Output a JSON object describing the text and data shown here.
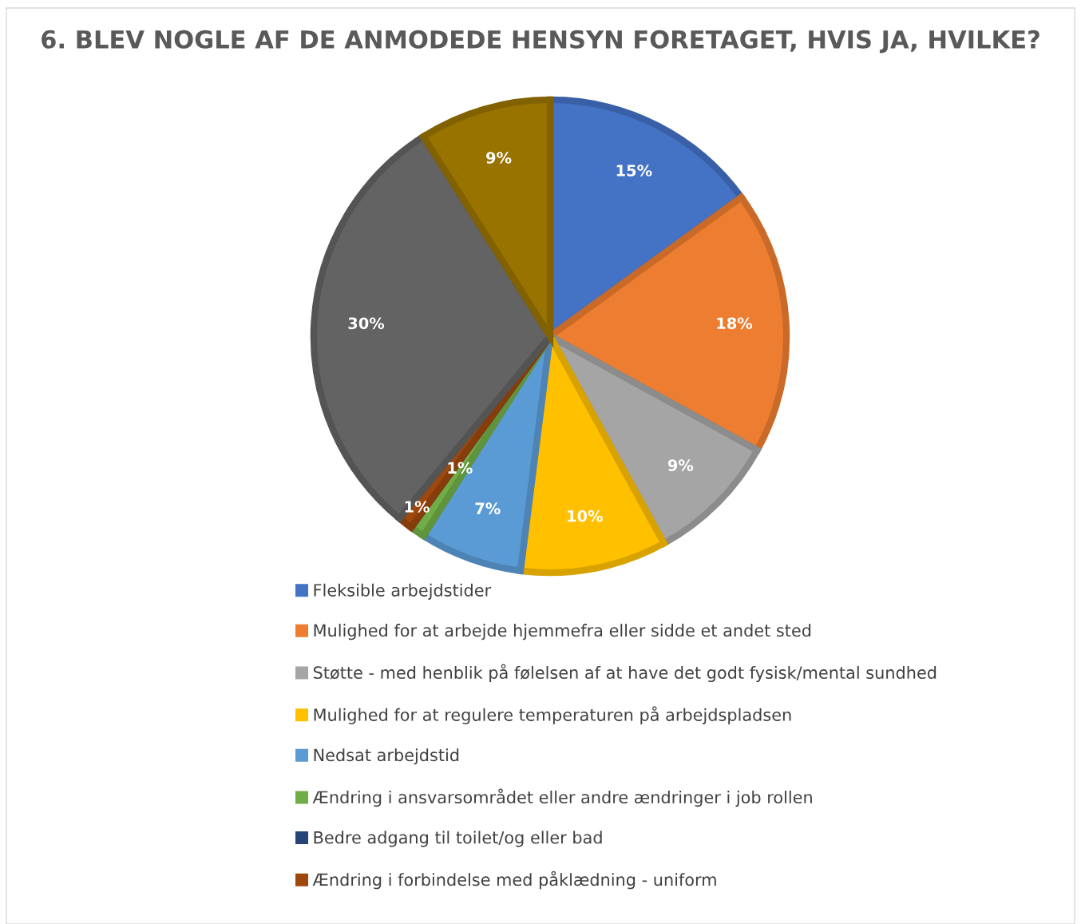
{
  "chart_data": {
    "type": "pie",
    "title": "6. BLEV NOGLE AF DE ANMODEDE HENSYN FORETAGET, HVIS JA, HVILKE?",
    "categories": [
      "Fleksible arbejdstider",
      "Mulighed for at arbejde hjemmefra eller sidde et andet sted",
      "Støtte - med henblik på følelsen af at have det godt fysisk/mental sundhed",
      "Mulighed for at regulere temperaturen på arbejdspladsen",
      "Nedsat arbejdstid",
      "Ændring i ansvarsområdet eller andre ændringer i job rollen",
      "Bedre adgang til toilet/og eller bad",
      "Ændring i forbindelse med påklædning - uniform",
      null,
      null
    ],
    "values": [
      15,
      18,
      9,
      10,
      7,
      1,
      0,
      1,
      30,
      9
    ],
    "value_labels": [
      "15%",
      "18%",
      "9%",
      "10%",
      "7%",
      "1%",
      null,
      "1%",
      "30%",
      "9%"
    ],
    "colors": [
      "#4472c4",
      "#ed7d31",
      "#a5a5a5",
      "#ffc000",
      "#5b9bd5",
      "#70ad47",
      "#264478",
      "#9e480e",
      "#636363",
      "#997300"
    ],
    "legend": "bottom"
  }
}
